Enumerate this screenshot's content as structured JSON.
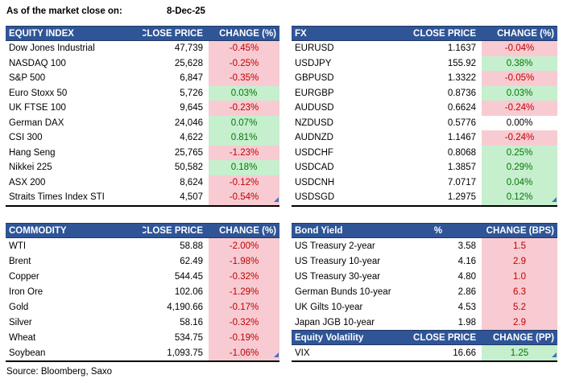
{
  "meta": {
    "as_of_label": "As of the market close on:",
    "as_of_date": "8-Dec-25",
    "source": "Source: Bloomberg, Saxo"
  },
  "colors": {
    "header_bg": "#2F5597",
    "header_text": "#FFFFFF",
    "header_border": "#1F3864",
    "negative_bg": "#F8CBD2",
    "negative_text": "#C00000",
    "positive_bg": "#C6EFCE",
    "positive_text": "#077507",
    "corner_marker": "#4472C4"
  },
  "tables": {
    "equity_index": {
      "headers": [
        "EQUITY INDEX",
        "CLOSE PRICE",
        "CHANGE (%)"
      ],
      "corner_marker": true,
      "rows": [
        {
          "name": "Dow Jones Industrial",
          "close": "47,739",
          "change": "-0.45%",
          "dir": "neg"
        },
        {
          "name": "NASDAQ 100",
          "close": "25,628",
          "change": "-0.25%",
          "dir": "neg"
        },
        {
          "name": "S&P 500",
          "close": "6,847",
          "change": "-0.35%",
          "dir": "neg"
        },
        {
          "name": "Euro Stoxx 50",
          "close": "5,726",
          "change": "0.03%",
          "dir": "pos"
        },
        {
          "name": "UK FTSE 100",
          "close": "9,645",
          "change": "-0.23%",
          "dir": "neg"
        },
        {
          "name": "German DAX",
          "close": "24,046",
          "change": "0.07%",
          "dir": "pos"
        },
        {
          "name": "CSI 300",
          "close": "4,622",
          "change": "0.81%",
          "dir": "pos"
        },
        {
          "name": "Hang Seng",
          "close": "25,765",
          "change": "-1.23%",
          "dir": "neg"
        },
        {
          "name": "Nikkei 225",
          "close": "50,582",
          "change": "0.18%",
          "dir": "pos"
        },
        {
          "name": "ASX 200",
          "close": "8,624",
          "change": "-0.12%",
          "dir": "neg"
        },
        {
          "name": "Straits Times Index STI",
          "close": "4,507",
          "change": "-0.54%",
          "dir": "neg"
        }
      ]
    },
    "fx": {
      "headers": [
        "FX",
        "CLOSE PRICE",
        "CHANGE (%)"
      ],
      "corner_marker": true,
      "rows": [
        {
          "name": "EURUSD",
          "close": "1.1637",
          "change": "-0.04%",
          "dir": "neg"
        },
        {
          "name": "USDJPY",
          "close": "155.92",
          "change": "0.38%",
          "dir": "pos"
        },
        {
          "name": "GBPUSD",
          "close": "1.3322",
          "change": "-0.05%",
          "dir": "neg"
        },
        {
          "name": "EURGBP",
          "close": "0.8736",
          "change": "0.03%",
          "dir": "pos"
        },
        {
          "name": "AUDUSD",
          "close": "0.6624",
          "change": "-0.24%",
          "dir": "neg"
        },
        {
          "name": "NZDUSD",
          "close": "0.5776",
          "change": "0.00%",
          "dir": "flat"
        },
        {
          "name": "AUDNZD",
          "close": "1.1467",
          "change": "-0.24%",
          "dir": "neg"
        },
        {
          "name": "USDCHF",
          "close": "0.8068",
          "change": "0.25%",
          "dir": "pos"
        },
        {
          "name": "USDCAD",
          "close": "1.3857",
          "change": "0.29%",
          "dir": "pos"
        },
        {
          "name": "USDCNH",
          "close": "7.0717",
          "change": "0.04%",
          "dir": "pos"
        },
        {
          "name": "USDSGD",
          "close": "1.2975",
          "change": "0.12%",
          "dir": "pos"
        }
      ]
    },
    "commodity": {
      "headers": [
        "COMMODITY",
        "CLOSE PRICE",
        "CHANGE (%)"
      ],
      "corner_marker": true,
      "rows": [
        {
          "name": "WTI",
          "close": "58.88",
          "change": "-2.00%",
          "dir": "neg"
        },
        {
          "name": "Brent",
          "close": "62.49",
          "change": "-1.98%",
          "dir": "neg"
        },
        {
          "name": "Copper",
          "close": "544.45",
          "change": "-0.32%",
          "dir": "neg"
        },
        {
          "name": "Iron Ore",
          "close": "102.06",
          "change": "-1.29%",
          "dir": "neg"
        },
        {
          "name": "Gold",
          "close": "4,190.66",
          "change": "-0.17%",
          "dir": "neg"
        },
        {
          "name": "Silver",
          "close": "58.16",
          "change": "-0.32%",
          "dir": "neg"
        },
        {
          "name": "Wheat",
          "close": "534.75",
          "change": "-0.19%",
          "dir": "neg"
        },
        {
          "name": "Soybean",
          "close": "1,093.75",
          "change": "-1.06%",
          "dir": "neg"
        }
      ]
    },
    "bond_yield": {
      "headers": [
        "Bond Yield",
        "%",
        "CHANGE (BPS)"
      ],
      "corner_marker": false,
      "col2_center": true,
      "rows": [
        {
          "name": "US Treasury 2-year",
          "close": "3.58",
          "change": "1.5",
          "dir": "neg"
        },
        {
          "name": "US Treasury 10-year",
          "close": "4.16",
          "change": "2.9",
          "dir": "neg"
        },
        {
          "name": "US Treasury 30-year",
          "close": "4.80",
          "change": "1.0",
          "dir": "neg"
        },
        {
          "name": "German Bunds 10-year",
          "close": "2.86",
          "change": "6.3",
          "dir": "neg"
        },
        {
          "name": "UK Gilts 10-year",
          "close": "4.53",
          "change": "5.2",
          "dir": "neg"
        },
        {
          "name": "Japan JGB 10-year",
          "close": "1.98",
          "change": "2.9",
          "dir": "neg"
        }
      ]
    },
    "equity_volatility": {
      "headers": [
        "Equity Volatility",
        "CLOSE PRICE",
        "CHANGE (PP)"
      ],
      "corner_marker": true,
      "rows": [
        {
          "name": "VIX",
          "close": "16.66",
          "change": "1.25",
          "dir": "pos"
        }
      ]
    }
  }
}
